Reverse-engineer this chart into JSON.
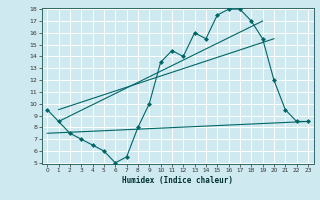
{
  "xlabel": "Humidex (Indice chaleur)",
  "bg_color": "#cfe9f0",
  "grid_color": "#ffffff",
  "line_color": "#006666",
  "line1_x": [
    0,
    1,
    2,
    3,
    4,
    5,
    6,
    7,
    8,
    9,
    10,
    11,
    12,
    13,
    14,
    15,
    16,
    17,
    18,
    19,
    20,
    21,
    22,
    23
  ],
  "line1_y": [
    9.5,
    8.5,
    7.5,
    7.0,
    6.5,
    6.0,
    5.0,
    5.5,
    8.0,
    10.0,
    13.5,
    14.5,
    14.0,
    16.0,
    15.5,
    17.5,
    18.0,
    18.0,
    17.0,
    15.5,
    12.0,
    9.5,
    8.5,
    8.5
  ],
  "line2_x": [
    0,
    23
  ],
  "line2_y": [
    7.5,
    8.5
  ],
  "line3_x": [
    1,
    19
  ],
  "line3_y": [
    8.5,
    17.0
  ],
  "line4_x": [
    1,
    20
  ],
  "line4_y": [
    9.5,
    15.5
  ],
  "ylim": [
    5,
    18
  ],
  "xlim": [
    -0.5,
    23.5
  ],
  "yticks": [
    5,
    6,
    7,
    8,
    9,
    10,
    11,
    12,
    13,
    14,
    15,
    16,
    17,
    18
  ],
  "xticks": [
    0,
    1,
    2,
    3,
    4,
    5,
    6,
    7,
    8,
    9,
    10,
    11,
    12,
    13,
    14,
    15,
    16,
    17,
    18,
    19,
    20,
    21,
    22,
    23
  ]
}
